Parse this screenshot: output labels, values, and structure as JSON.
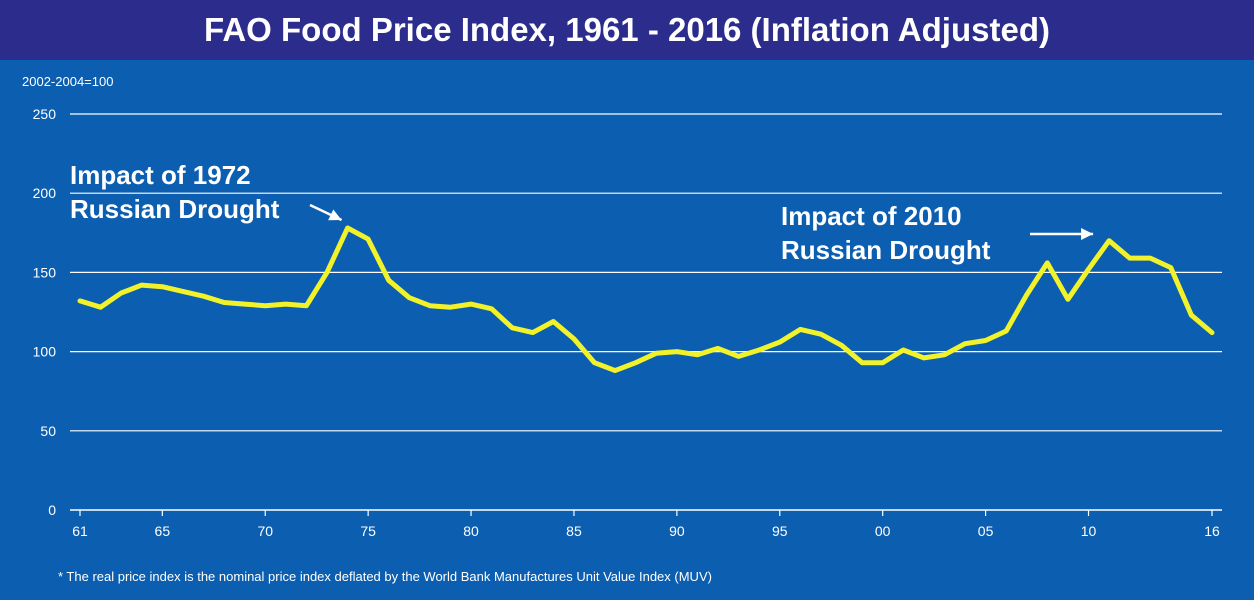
{
  "title": "FAO Food Price Index, 1961 - 2016 (Inflation Adjusted)",
  "unit_note": "2002-2004=100",
  "footnote": "* The real price index is the nominal price index deflated by the World Bank Manufactures Unit Value Index (MUV)",
  "annotations": {
    "drought_1972": {
      "line1": "Impact of 1972",
      "line2": "Russian Drought",
      "points_to_year": 1974
    },
    "drought_2010": {
      "line1": "Impact of 2010",
      "line2": "Russian Drought",
      "points_to_year": 2011
    }
  },
  "colors": {
    "background": "#0b5eb0",
    "title_bar": "#2c2c8c",
    "line": "#f2f22a",
    "grid": "#ffffff",
    "text": "#ffffff"
  },
  "chart_data": {
    "type": "line",
    "title": "FAO Food Price Index, 1961 - 2016 (Inflation Adjusted)",
    "ylabel": "2002-2004=100",
    "xlabel": "",
    "xlim": [
      1961,
      2016
    ],
    "ylim": [
      0,
      250
    ],
    "yticks": [
      0,
      50,
      100,
      150,
      200,
      250
    ],
    "xticks": [
      {
        "value": 1961,
        "label": "61"
      },
      {
        "value": 1965,
        "label": "65"
      },
      {
        "value": 1970,
        "label": "70"
      },
      {
        "value": 1975,
        "label": "75"
      },
      {
        "value": 1980,
        "label": "80"
      },
      {
        "value": 1985,
        "label": "85"
      },
      {
        "value": 1990,
        "label": "90"
      },
      {
        "value": 1995,
        "label": "95"
      },
      {
        "value": 2000,
        "label": "00"
      },
      {
        "value": 2005,
        "label": "05"
      },
      {
        "value": 2010,
        "label": "10"
      },
      {
        "value": 2016,
        "label": "16"
      }
    ],
    "grid": true,
    "series": [
      {
        "x": [
          1961,
          1962,
          1963,
          1964,
          1965,
          1966,
          1967,
          1968,
          1969,
          1970,
          1971,
          1972,
          1973,
          1974,
          1975,
          1976,
          1977,
          1978,
          1979,
          1980,
          1981,
          1982,
          1983,
          1984,
          1985,
          1986,
          1987,
          1988,
          1989,
          1990,
          1991,
          1992,
          1993,
          1994,
          1995,
          1996,
          1997,
          1998,
          1999,
          2000,
          2001,
          2002,
          2003,
          2004,
          2005,
          2006,
          2007,
          2008,
          2009,
          2010,
          2011,
          2012,
          2013,
          2014,
          2015,
          2016
        ],
        "values": [
          132,
          128,
          137,
          142,
          141,
          138,
          135,
          131,
          130,
          129,
          130,
          129,
          150,
          178,
          171,
          145,
          134,
          129,
          128,
          130,
          127,
          115,
          112,
          119,
          108,
          93,
          88,
          93,
          99,
          100,
          98,
          102,
          97,
          101,
          106,
          114,
          111,
          104,
          93,
          93,
          101,
          96,
          98,
          105,
          107,
          113,
          136,
          156,
          133,
          152,
          170,
          159,
          159,
          153,
          123,
          112
        ]
      }
    ]
  }
}
